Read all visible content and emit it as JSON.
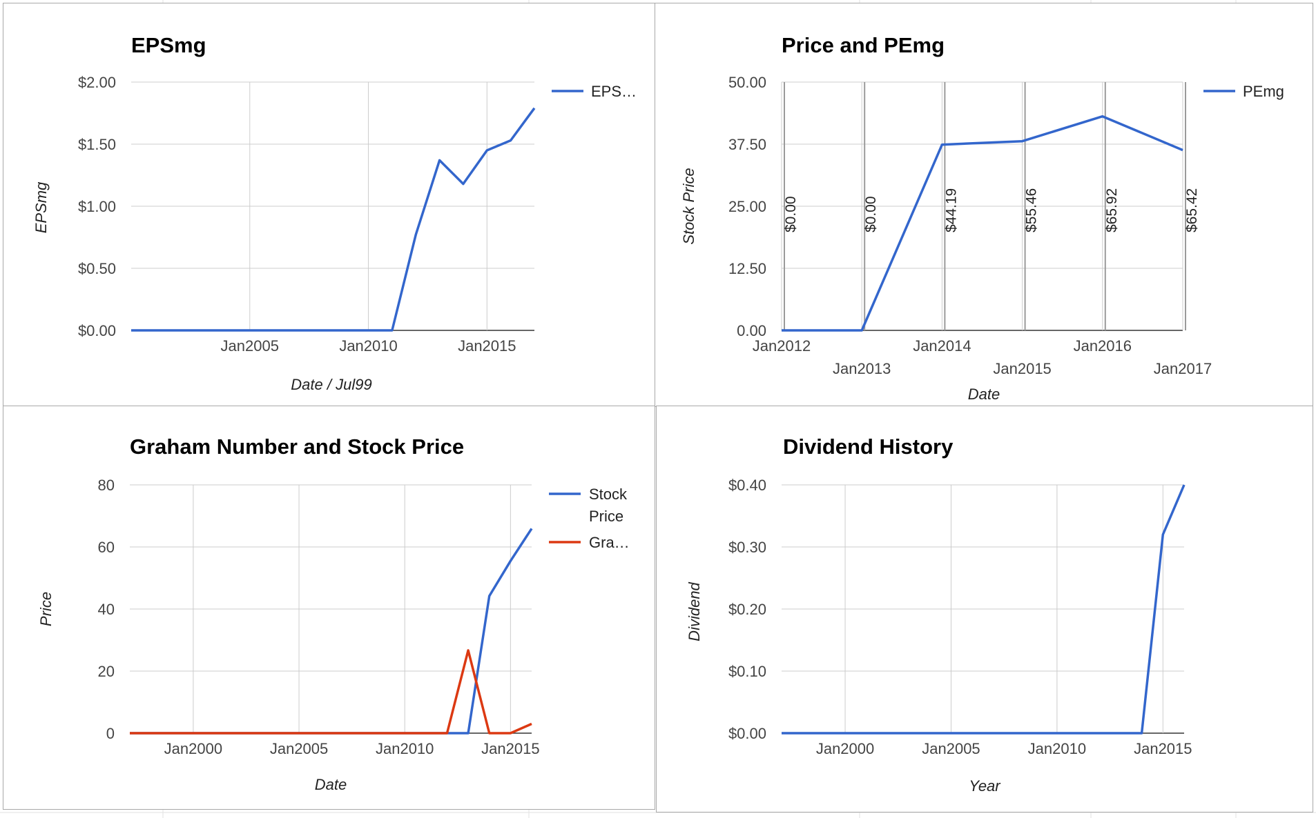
{
  "chart_data": [
    {
      "id": "eps",
      "type": "line",
      "title": "EPSmg",
      "xlabel": "Date / Jul99",
      "ylabel": "EPSmg",
      "x_range": [
        2000,
        2017
      ],
      "x_ticks": [
        "Jan2005",
        "Jan2010",
        "Jan2015"
      ],
      "y_ticks": [
        "$0.00",
        "$0.50",
        "$1.00",
        "$1.50",
        "$2.00"
      ],
      "ylim": [
        0,
        2
      ],
      "legend": "right",
      "series": [
        {
          "name": "EPS…",
          "color": "#3366cc",
          "x": [
            2000,
            2001,
            2002,
            2003,
            2004,
            2005,
            2006,
            2007,
            2008,
            2009,
            2010,
            2011,
            2012,
            2013,
            2014,
            2015,
            2016,
            2017
          ],
          "y": [
            0,
            0,
            0,
            0,
            0,
            0,
            0,
            0,
            0,
            0,
            0,
            0,
            0.77,
            1.37,
            1.18,
            1.45,
            1.53,
            1.79
          ]
        }
      ]
    },
    {
      "id": "price",
      "type": "line",
      "title": "Price and PEmg",
      "xlabel": "Date",
      "ylabel": "Stock Price",
      "x_range": [
        2012,
        2017
      ],
      "x_ticks_upper": [
        "Jan2012",
        "Jan2014",
        "Jan2016"
      ],
      "x_ticks_lower": [
        "Jan2013",
        "Jan2015",
        "Jan2017"
      ],
      "y_ticks": [
        "0.00",
        "12.50",
        "25.00",
        "37.50",
        "50.00"
      ],
      "ylim": [
        0,
        50
      ],
      "legend": "right",
      "series": [
        {
          "name": "PEmg",
          "color": "#3366cc",
          "x": [
            2012,
            2013,
            2014,
            2015,
            2016,
            2017
          ],
          "y": [
            0,
            0,
            37.4,
            38.1,
            43.1,
            36.3
          ]
        }
      ],
      "annotations": [
        {
          "x": 2012,
          "text": "$0.00"
        },
        {
          "x": 2013,
          "text": "$0.00"
        },
        {
          "x": 2014,
          "text": "$44.19"
        },
        {
          "x": 2015,
          "text": "$55.46"
        },
        {
          "x": 2016,
          "text": "$65.92"
        },
        {
          "x": 2017,
          "text": "$65.42"
        }
      ]
    },
    {
      "id": "graham",
      "type": "line",
      "title": "Graham Number and Stock Price",
      "xlabel": "Date",
      "ylabel": "Price",
      "x_range": [
        1997,
        2016
      ],
      "x_ticks": [
        "Jan2000",
        "Jan2005",
        "Jan2010",
        "Jan2015"
      ],
      "y_ticks": [
        "0",
        "20",
        "40",
        "60",
        "80"
      ],
      "ylim": [
        0,
        80
      ],
      "legend": "right",
      "series": [
        {
          "name": "Stock Price",
          "color": "#3366cc",
          "x": [
            1997,
            2012,
            2013,
            2014,
            2015,
            2016
          ],
          "y": [
            0,
            0,
            0,
            44.2,
            55.5,
            65.9
          ]
        },
        {
          "name": "Gra…",
          "color": "#dc3912",
          "x": [
            1997,
            2011,
            2012,
            2013,
            2014,
            2015,
            2016
          ],
          "y": [
            0,
            0,
            0,
            26.7,
            0,
            0,
            3
          ]
        }
      ]
    },
    {
      "id": "dividend",
      "type": "line",
      "title": "Dividend History",
      "xlabel": "Year",
      "ylabel": "Dividend",
      "x_range": [
        1997,
        2016
      ],
      "x_ticks": [
        "Jan2000",
        "Jan2005",
        "Jan2010",
        "Jan2015"
      ],
      "y_ticks": [
        "$0.00",
        "$0.10",
        "$0.20",
        "$0.30",
        "$0.40"
      ],
      "ylim": [
        0,
        0.4
      ],
      "legend": "none",
      "series": [
        {
          "name": "",
          "color": "#3366cc",
          "x": [
            1997,
            2014,
            2015,
            2016
          ],
          "y": [
            0,
            0,
            0.32,
            0.4
          ]
        }
      ]
    }
  ]
}
